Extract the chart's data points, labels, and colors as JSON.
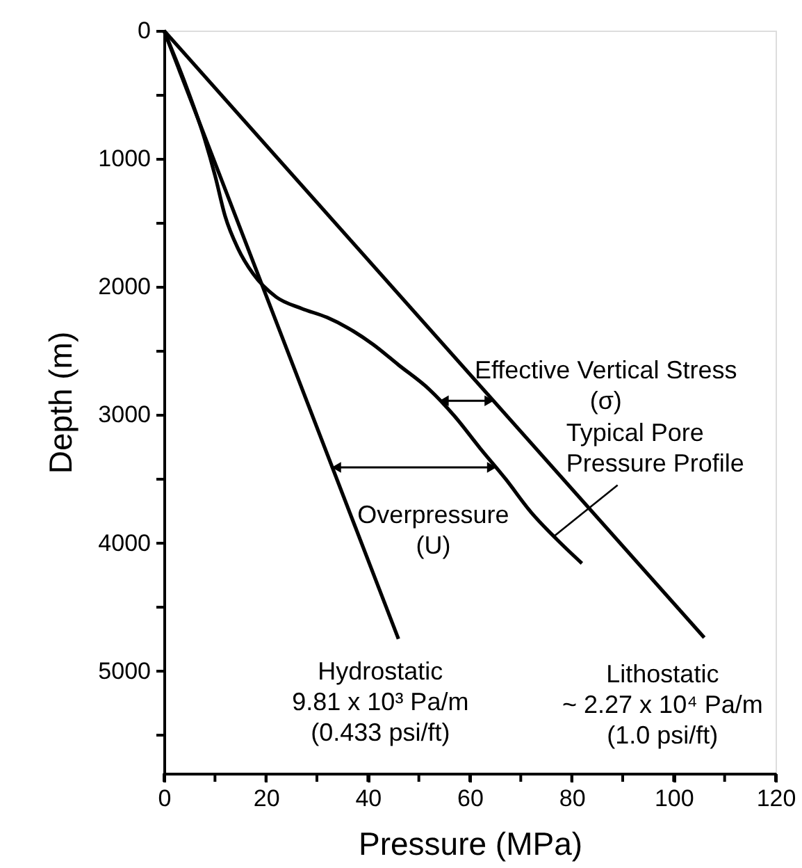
{
  "chart_data": {
    "type": "line",
    "xlabel": "Pressure (MPa)",
    "ylabel": "Depth (m)",
    "xlim": [
      0,
      120
    ],
    "xticks": [
      0,
      {
        "value": 10,
        "label": null
      },
      20,
      {
        "value": 30,
        "label": null
      },
      40,
      {
        "value": 50,
        "label": null
      },
      60,
      {
        "value": 70,
        "label": null
      },
      80,
      {
        "value": 90,
        "label": null
      },
      100,
      {
        "value": 110,
        "label": null
      },
      120
    ],
    "ylim": [
      5800,
      0
    ],
    "yticks": [
      0,
      {
        "value": 500,
        "label": null
      },
      1000,
      {
        "value": 1500,
        "label": null
      },
      2000,
      {
        "value": 2500,
        "label": null
      },
      3000,
      {
        "value": 3500,
        "label": null
      },
      4000,
      {
        "value": 4500,
        "label": null
      },
      5000,
      {
        "value": 5500,
        "label": null
      }
    ],
    "grid": false,
    "marker": "none",
    "line_style": "solid",
    "series": [
      {
        "name": "Hydrostatic\n9.81 x 10³ Pa/m\n(0.433 psi/ft)",
        "color": "#000000",
        "x": [
          0,
          46
        ],
        "values": [
          0,
          4750
        ]
      },
      {
        "name": "Typical Pore\nPressure Profile",
        "color": "#000000",
        "x": [
          0,
          4.5,
          8,
          10,
          12,
          14.5,
          17.5,
          22,
          27,
          32,
          36,
          41,
          46,
          52,
          57,
          62,
          67,
          72,
          77,
          82
        ],
        "values": [
          0,
          450,
          850,
          1130,
          1450,
          1700,
          1900,
          2080,
          2170,
          2240,
          2320,
          2450,
          2610,
          2800,
          3010,
          3260,
          3500,
          3760,
          3970,
          4160
        ]
      },
      {
        "name": "Lithostatic\n~ 2.27 x 10⁴ Pa/m\n(1.0 psi/ft)",
        "color": "#000000",
        "x": [
          0,
          106
        ],
        "values": [
          0,
          4740
        ]
      }
    ],
    "annotations": [
      {
        "text": "Effective Vertical Stress\n(σ)",
        "x": 64.6,
        "y": 2890
      },
      {
        "text": "Overpressure\n(U)",
        "x": 65.1,
        "y": 3410
      }
    ]
  }
}
